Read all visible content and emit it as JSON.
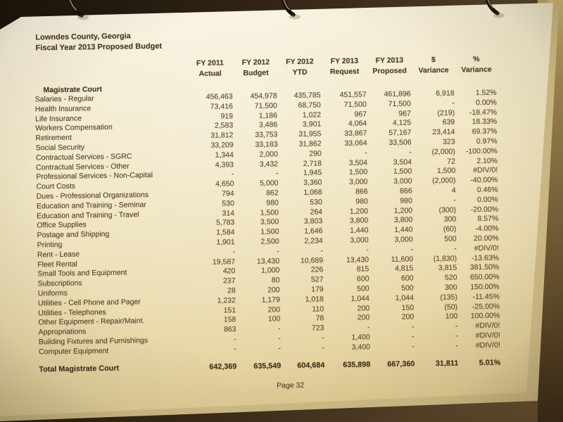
{
  "document": {
    "title_line1": "Lowndes County, Georgia",
    "title_line2": "Fiscal Year 2013 Proposed Budget",
    "section": "Magistrate Court",
    "footer": "Page 32"
  },
  "colors": {
    "paper": "#f0e5c2",
    "ink": "#5a4730",
    "ink_bold": "#42331e",
    "background": "#2e2212"
  },
  "icons": [
    "binder-ring",
    "binder-ring",
    "binder-ring"
  ],
  "table": {
    "columns": [
      {
        "line1": "FY 2011",
        "line2": "Actual"
      },
      {
        "line1": "FY 2012",
        "line2": "Budget"
      },
      {
        "line1": "FY 2012",
        "line2": "YTD"
      },
      {
        "line1": "FY 2013",
        "line2": "Request"
      },
      {
        "line1": "FY 2013",
        "line2": "Proposed"
      },
      {
        "line1": "$",
        "line2": "Variance"
      },
      {
        "line1": "%",
        "line2": "Variance"
      }
    ],
    "rows": [
      {
        "label": "Salaries - Regular",
        "values": [
          "456,463",
          "454,978",
          "435,785",
          "451,557",
          "461,896",
          "6,918",
          "1.52%"
        ]
      },
      {
        "label": "Health Insurance",
        "values": [
          "73,416",
          "71,500",
          "68,750",
          "71,500",
          "71,500",
          "-",
          "0.00%"
        ]
      },
      {
        "label": "Life Insurance",
        "values": [
          "919",
          "1,186",
          "1,022",
          "967",
          "967",
          "(219)",
          "-18.47%"
        ]
      },
      {
        "label": "Workers Compensation",
        "values": [
          "2,583",
          "3,486",
          "3,901",
          "4,064",
          "4,125",
          "639",
          "18.33%"
        ]
      },
      {
        "label": "Retirement",
        "values": [
          "31,812",
          "33,753",
          "31,955",
          "33,867",
          "57,167",
          "23,414",
          "69.37%"
        ]
      },
      {
        "label": "Social Security",
        "values": [
          "33,209",
          "33,183",
          "31,862",
          "33,064",
          "33,506",
          "323",
          "0.97%"
        ]
      },
      {
        "label": "Contractual Services - SGRC",
        "values": [
          "1,344",
          "2,000",
          "290",
          "-",
          "-",
          "(2,000)",
          "-100.00%"
        ]
      },
      {
        "label": "Contractual Services - Other",
        "values": [
          "4,393",
          "3,432",
          "2,718",
          "3,504",
          "3,504",
          "72",
          "2.10%"
        ]
      },
      {
        "label": "Professional Services - Non-Capital",
        "values": [
          "-",
          "-",
          "1,945",
          "1,500",
          "1,500",
          "1,500",
          "#DIV/0!"
        ]
      },
      {
        "label": "Court Costs",
        "values": [
          "4,650",
          "5,000",
          "3,360",
          "3,000",
          "3,000",
          "(2,000)",
          "-40.00%"
        ]
      },
      {
        "label": "Dues - Professional Organizations",
        "values": [
          "794",
          "862",
          "1,068",
          "866",
          "866",
          "4",
          "0.46%"
        ]
      },
      {
        "label": "Education and Training - Seminar",
        "values": [
          "530",
          "980",
          "530",
          "980",
          "980",
          "-",
          "0.00%"
        ]
      },
      {
        "label": "Education and Training - Travel",
        "values": [
          "314",
          "1,500",
          "264",
          "1,200",
          "1,200",
          "(300)",
          "-20.00%"
        ]
      },
      {
        "label": "Office Supplies",
        "values": [
          "5,783",
          "3,500",
          "3,803",
          "3,800",
          "3,800",
          "300",
          "8.57%"
        ]
      },
      {
        "label": "Postage and Shipping",
        "values": [
          "1,584",
          "1,500",
          "1,646",
          "1,440",
          "1,440",
          "(60)",
          "-4.00%"
        ]
      },
      {
        "label": "Printing",
        "values": [
          "1,901",
          "2,500",
          "2,234",
          "3,000",
          "3,000",
          "500",
          "20.00%"
        ]
      },
      {
        "label": "Rent - Lease",
        "values": [
          "-",
          "-",
          "-",
          "-",
          "-",
          "-",
          "#DIV/0!"
        ]
      },
      {
        "label": "Fleet Rental",
        "values": [
          "19,587",
          "13,430",
          "10,689",
          "13,430",
          "11,600",
          "(1,830)",
          "-13.63%"
        ]
      },
      {
        "label": "Small Tools and Equipment",
        "values": [
          "420",
          "1,000",
          "226",
          "815",
          "4,815",
          "3,815",
          "381.50%"
        ]
      },
      {
        "label": "Subscriptions",
        "values": [
          "237",
          "80",
          "527",
          "600",
          "600",
          "520",
          "650.00%"
        ]
      },
      {
        "label": "Uniforms",
        "values": [
          "28",
          "200",
          "179",
          "500",
          "500",
          "300",
          "150.00%"
        ]
      },
      {
        "label": "Utilities - Cell Phone and Pager",
        "values": [
          "1,232",
          "1,179",
          "1,018",
          "1,044",
          "1,044",
          "(135)",
          "-11.45%"
        ]
      },
      {
        "label": "Utilities - Telephones",
        "values": [
          "151",
          "200",
          "110",
          "200",
          "150",
          "(50)",
          "-25.00%"
        ]
      },
      {
        "label": "Other Equipment - Repair/Maint.",
        "values": [
          "158",
          "100",
          "78",
          "200",
          "200",
          "100",
          "100.00%"
        ]
      },
      {
        "label": "Appropriations",
        "values": [
          "863",
          "-",
          "723",
          "-",
          "-",
          "-",
          "#DIV/0!"
        ]
      },
      {
        "label": "Building Fixtures and Furnishings",
        "values": [
          "-",
          "-",
          "-",
          "1,400",
          "-",
          "-",
          "#DIV/0!"
        ]
      },
      {
        "label": "Computer Equipment",
        "values": [
          "-",
          "-",
          "-",
          "3,400",
          "-",
          "-",
          "#DIV/0!"
        ]
      }
    ],
    "total": {
      "label": "Total Magistrate Court",
      "values": [
        "642,369",
        "635,549",
        "604,684",
        "635,898",
        "667,360",
        "31,811",
        "5.01%"
      ]
    }
  }
}
